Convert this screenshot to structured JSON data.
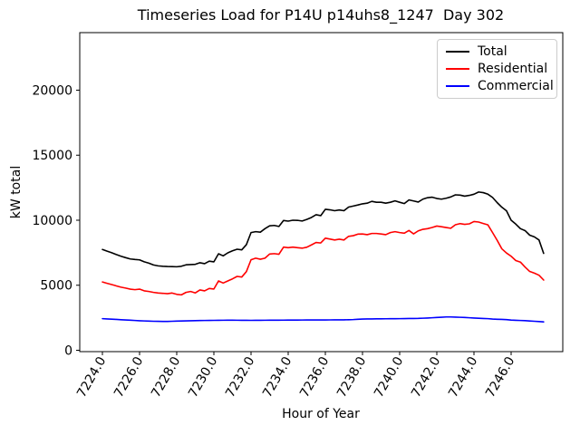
{
  "title": "Timeseries Load for P14U p14uhs8_1247  Day 302",
  "legend": {
    "position": "upper right",
    "entries": [
      {
        "label": "Total",
        "color": "#000000"
      },
      {
        "label": "Residential",
        "color": "#ff0000"
      },
      {
        "label": "Commercial",
        "color": "#0000ff"
      }
    ]
  },
  "chart_data": {
    "type": "line",
    "title": "Timeseries Load for P14U p14uhs8_1247  Day 302",
    "xlabel": "Hour of Year",
    "ylabel": "kW total",
    "grid": false,
    "legend_position": "upper right",
    "xlim": [
      7222.78,
      7248.78
    ],
    "ylim": [
      -105,
      24425
    ],
    "xticks": [
      7224,
      7226,
      7228,
      7230,
      7232,
      7234,
      7236,
      7238,
      7240,
      7242,
      7244,
      7246
    ],
    "xtick_labels": [
      "7224.0",
      "7226.0",
      "7228.0",
      "7230.0",
      "7232.0",
      "7234.0",
      "7236.0",
      "7238.0",
      "7240.0",
      "7242.0",
      "7244.0",
      "7246.0"
    ],
    "yticks": [
      0,
      5000,
      10000,
      15000,
      20000
    ],
    "ytick_labels": [
      "0",
      "5000",
      "10000",
      "15000",
      "20000"
    ],
    "x": [
      7224.0,
      7224.25,
      7224.5,
      7224.75,
      7225.0,
      7225.25,
      7225.5,
      7225.75,
      7226.0,
      7226.25,
      7226.5,
      7226.75,
      7227.0,
      7227.25,
      7227.5,
      7227.75,
      7228.0,
      7228.25,
      7228.5,
      7228.75,
      7229.0,
      7229.25,
      7229.5,
      7229.75,
      7230.0,
      7230.25,
      7230.5,
      7230.75,
      7231.0,
      7231.25,
      7231.5,
      7231.75,
      7232.0,
      7232.25,
      7232.5,
      7232.75,
      7233.0,
      7233.25,
      7233.5,
      7233.75,
      7234.0,
      7234.25,
      7234.5,
      7234.75,
      7235.0,
      7235.25,
      7235.5,
      7235.75,
      7236.0,
      7236.25,
      7236.5,
      7236.75,
      7237.0,
      7237.25,
      7237.5,
      7237.75,
      7238.0,
      7238.25,
      7238.5,
      7238.75,
      7239.0,
      7239.25,
      7239.5,
      7239.75,
      7240.0,
      7240.25,
      7240.5,
      7240.75,
      7241.0,
      7241.25,
      7241.5,
      7241.75,
      7242.0,
      7242.25,
      7242.5,
      7242.75,
      7243.0,
      7243.25,
      7243.5,
      7243.75,
      7244.0,
      7244.25,
      7244.5,
      7244.75,
      7245.0,
      7245.25,
      7245.5,
      7245.75,
      7246.0,
      7246.25,
      7246.5,
      7246.75,
      7247.0,
      7247.25,
      7247.5,
      7247.75
    ],
    "series": [
      {
        "name": "Total",
        "color": "#000000",
        "values": [
          7750,
          7620,
          7500,
          7360,
          7230,
          7120,
          7020,
          6980,
          6950,
          6800,
          6700,
          6560,
          6490,
          6460,
          6440,
          6430,
          6420,
          6460,
          6570,
          6590,
          6610,
          6730,
          6660,
          6850,
          6800,
          7420,
          7260,
          7490,
          7650,
          7770,
          7720,
          8120,
          9050,
          9120,
          9080,
          9350,
          9570,
          9600,
          9520,
          9980,
          9930,
          10000,
          9990,
          9940,
          10060,
          10210,
          10420,
          10350,
          10840,
          10800,
          10730,
          10790,
          10730,
          11010,
          11090,
          11170,
          11260,
          11310,
          11450,
          11380,
          11380,
          11310,
          11380,
          11490,
          11380,
          11280,
          11560,
          11480,
          11400,
          11620,
          11730,
          11770,
          11670,
          11620,
          11690,
          11790,
          11950,
          11930,
          11850,
          11910,
          12000,
          12170,
          12120,
          12000,
          11750,
          11350,
          11000,
          10720,
          10000,
          9700,
          9350,
          9200,
          8850,
          8720,
          8480,
          7450
        ]
      },
      {
        "name": "Residential",
        "color": "#ff0000",
        "values": [
          5250,
          5150,
          5050,
          4950,
          4850,
          4780,
          4700,
          4660,
          4700,
          4570,
          4520,
          4450,
          4400,
          4380,
          4350,
          4400,
          4300,
          4260,
          4450,
          4520,
          4410,
          4640,
          4570,
          4750,
          4710,
          5330,
          5170,
          5330,
          5490,
          5680,
          5630,
          6050,
          6960,
          7080,
          7000,
          7080,
          7400,
          7430,
          7380,
          7930,
          7890,
          7930,
          7890,
          7850,
          7920,
          8100,
          8290,
          8250,
          8620,
          8550,
          8480,
          8540,
          8480,
          8760,
          8810,
          8930,
          8940,
          8890,
          8980,
          8980,
          8940,
          8890,
          9050,
          9120,
          9050,
          9000,
          9210,
          8950,
          9180,
          9300,
          9350,
          9440,
          9550,
          9500,
          9440,
          9380,
          9650,
          9740,
          9680,
          9720,
          9900,
          9860,
          9750,
          9640,
          9050,
          8450,
          7800,
          7480,
          7230,
          6900,
          6780,
          6400,
          6060,
          5930,
          5770,
          5400
        ]
      },
      {
        "name": "Commercial",
        "color": "#0000ff",
        "values": [
          2430,
          2410,
          2390,
          2370,
          2350,
          2330,
          2310,
          2290,
          2270,
          2255,
          2240,
          2230,
          2225,
          2220,
          2220,
          2230,
          2240,
          2250,
          2260,
          2270,
          2280,
          2285,
          2290,
          2295,
          2300,
          2305,
          2308,
          2310,
          2310,
          2308,
          2305,
          2303,
          2300,
          2302,
          2305,
          2308,
          2310,
          2312,
          2314,
          2316,
          2318,
          2320,
          2322,
          2325,
          2328,
          2330,
          2330,
          2330,
          2332,
          2334,
          2336,
          2338,
          2340,
          2350,
          2360,
          2380,
          2400,
          2405,
          2410,
          2415,
          2420,
          2422,
          2425,
          2428,
          2430,
          2435,
          2440,
          2445,
          2450,
          2465,
          2480,
          2500,
          2520,
          2540,
          2560,
          2560,
          2550,
          2535,
          2520,
          2500,
          2480,
          2460,
          2445,
          2430,
          2400,
          2385,
          2370,
          2355,
          2320,
          2305,
          2290,
          2275,
          2250,
          2230,
          2210,
          2180
        ]
      }
    ]
  }
}
